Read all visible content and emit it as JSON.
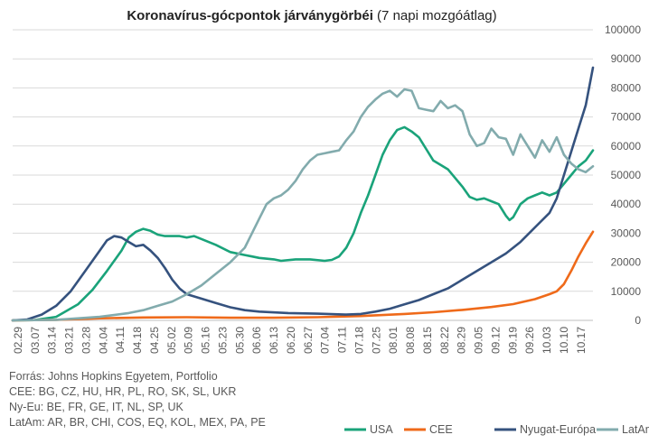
{
  "chart_data": {
    "type": "line",
    "title_bold": "Koronavírus-gócpontok járványgörbéi",
    "title_rest": " (7 napi mozgóátlag)",
    "x_labels": [
      "02.29",
      "03.07",
      "03.14",
      "03.21",
      "03.28",
      "04.04",
      "04.11",
      "04.18",
      "04.25",
      "05.02",
      "05.09",
      "05.16",
      "05.23",
      "05.30",
      "06.06",
      "06.13",
      "06.20",
      "06.27",
      "07.04",
      "07.11",
      "07.18",
      "07.25",
      "08.01",
      "08.08",
      "08.15",
      "08.22",
      "08.29",
      "09.05",
      "09.12",
      "09.19",
      "09.26",
      "10.03",
      "10.10",
      "10.17"
    ],
    "y_ticks": [
      "0",
      "10000",
      "20000",
      "30000",
      "40000",
      "50000",
      "60000",
      "70000",
      "80000",
      "90000",
      "100000"
    ],
    "ylim": [
      0,
      100000
    ],
    "y_axis_position": "right",
    "grid": true,
    "legend_position": "bottom-right",
    "series": [
      {
        "name": "USA",
        "color": "#1aa37a",
        "points": [
          [
            0,
            0
          ],
          [
            3,
            100
          ],
          [
            6,
            1200
          ],
          [
            9,
            5500
          ],
          [
            11,
            10500
          ],
          [
            13,
            17000
          ],
          [
            15,
            24000
          ],
          [
            16,
            28500
          ],
          [
            17,
            30500
          ],
          [
            18,
            31500
          ],
          [
            19,
            30800
          ],
          [
            20,
            29500
          ],
          [
            21,
            29000
          ],
          [
            23,
            29000
          ],
          [
            24,
            28500
          ],
          [
            25,
            29000
          ],
          [
            26,
            28000
          ],
          [
            28,
            26000
          ],
          [
            30,
            23500
          ],
          [
            32,
            22500
          ],
          [
            33,
            22000
          ],
          [
            34,
            21500
          ],
          [
            36,
            21000
          ],
          [
            37,
            20500
          ],
          [
            39,
            21000
          ],
          [
            41,
            21000
          ],
          [
            43,
            20500
          ],
          [
            44,
            20800
          ],
          [
            45,
            22000
          ],
          [
            46,
            25000
          ],
          [
            47,
            30000
          ],
          [
            48,
            37000
          ],
          [
            49,
            43000
          ],
          [
            50,
            50000
          ],
          [
            51,
            57000
          ],
          [
            52,
            62000
          ],
          [
            53,
            65500
          ],
          [
            54,
            66500
          ],
          [
            55,
            65000
          ],
          [
            56,
            63000
          ],
          [
            57,
            59000
          ],
          [
            58,
            55000
          ],
          [
            59,
            53500
          ],
          [
            60,
            52000
          ],
          [
            61,
            49000
          ],
          [
            62,
            46000
          ],
          [
            63,
            42500
          ],
          [
            64,
            41500
          ],
          [
            65,
            42000
          ],
          [
            66,
            41000
          ],
          [
            67,
            40000
          ],
          [
            68,
            36000
          ],
          [
            68.5,
            34500
          ],
          [
            69,
            35500
          ],
          [
            70,
            40000
          ],
          [
            71,
            42000
          ],
          [
            72,
            43000
          ],
          [
            73,
            44000
          ],
          [
            74,
            43000
          ],
          [
            75,
            44000
          ],
          [
            76,
            47000
          ],
          [
            77,
            50000
          ],
          [
            78,
            53000
          ],
          [
            79,
            55000
          ],
          [
            80,
            58500
          ]
        ]
      },
      {
        "name": "CEE",
        "color": "#ef6a1a",
        "points": [
          [
            0,
            0
          ],
          [
            6,
            200
          ],
          [
            12,
            700
          ],
          [
            18,
            1000
          ],
          [
            24,
            1100
          ],
          [
            30,
            900
          ],
          [
            36,
            900
          ],
          [
            42,
            1100
          ],
          [
            48,
            1500
          ],
          [
            54,
            2200
          ],
          [
            58,
            2800
          ],
          [
            62,
            3600
          ],
          [
            66,
            4600
          ],
          [
            69,
            5600
          ],
          [
            72,
            7300
          ],
          [
            74,
            9000
          ],
          [
            75,
            10000
          ],
          [
            76,
            12500
          ],
          [
            77,
            17000
          ],
          [
            78,
            22000
          ],
          [
            79,
            26500
          ],
          [
            80,
            30500
          ]
        ]
      },
      {
        "name": "Nyugat-Európa",
        "color": "#35527e",
        "points": [
          [
            0,
            0
          ],
          [
            2,
            300
          ],
          [
            4,
            2000
          ],
          [
            6,
            5000
          ],
          [
            8,
            10000
          ],
          [
            10,
            17000
          ],
          [
            12,
            24000
          ],
          [
            13,
            27500
          ],
          [
            14,
            29000
          ],
          [
            15,
            28500
          ],
          [
            16,
            27000
          ],
          [
            17,
            25500
          ],
          [
            18,
            26000
          ],
          [
            19,
            24000
          ],
          [
            20,
            21500
          ],
          [
            21,
            18000
          ],
          [
            22,
            14000
          ],
          [
            23,
            11000
          ],
          [
            24,
            9000
          ],
          [
            26,
            7500
          ],
          [
            28,
            6000
          ],
          [
            30,
            4500
          ],
          [
            32,
            3500
          ],
          [
            34,
            3000
          ],
          [
            38,
            2500
          ],
          [
            42,
            2300
          ],
          [
            46,
            2000
          ],
          [
            48,
            2200
          ],
          [
            50,
            3000
          ],
          [
            52,
            4000
          ],
          [
            54,
            5500
          ],
          [
            56,
            7000
          ],
          [
            58,
            9000
          ],
          [
            60,
            11000
          ],
          [
            62,
            14000
          ],
          [
            64,
            17000
          ],
          [
            66,
            20000
          ],
          [
            68,
            23000
          ],
          [
            70,
            27000
          ],
          [
            72,
            32000
          ],
          [
            74,
            37000
          ],
          [
            75,
            42000
          ],
          [
            76,
            50000
          ],
          [
            77,
            58000
          ],
          [
            78,
            66000
          ],
          [
            79,
            74000
          ],
          [
            80,
            87000
          ]
        ]
      },
      {
        "name": "LatAm",
        "color": "#82abad",
        "points": [
          [
            0,
            0
          ],
          [
            6,
            200
          ],
          [
            12,
            1200
          ],
          [
            16,
            2500
          ],
          [
            18,
            3500
          ],
          [
            20,
            5000
          ],
          [
            22,
            6500
          ],
          [
            24,
            9000
          ],
          [
            26,
            12000
          ],
          [
            28,
            16000
          ],
          [
            30,
            20000
          ],
          [
            32,
            25000
          ],
          [
            33,
            30000
          ],
          [
            34,
            35000
          ],
          [
            35,
            40000
          ],
          [
            36,
            42000
          ],
          [
            37,
            43000
          ],
          [
            38,
            45000
          ],
          [
            39,
            48000
          ],
          [
            40,
            52000
          ],
          [
            41,
            55000
          ],
          [
            42,
            57000
          ],
          [
            43,
            57500
          ],
          [
            44,
            58000
          ],
          [
            45,
            58500
          ],
          [
            46,
            62000
          ],
          [
            47,
            65000
          ],
          [
            48,
            70000
          ],
          [
            49,
            73500
          ],
          [
            50,
            76000
          ],
          [
            51,
            78000
          ],
          [
            52,
            79000
          ],
          [
            53,
            77000
          ],
          [
            54,
            79500
          ],
          [
            55,
            79000
          ],
          [
            56,
            73000
          ],
          [
            57,
            72500
          ],
          [
            58,
            72000
          ],
          [
            59,
            75500
          ],
          [
            60,
            73000
          ],
          [
            61,
            74000
          ],
          [
            62,
            72000
          ],
          [
            63,
            64000
          ],
          [
            64,
            60000
          ],
          [
            65,
            61000
          ],
          [
            66,
            66000
          ],
          [
            67,
            63000
          ],
          [
            68,
            62500
          ],
          [
            69,
            57000
          ],
          [
            70,
            64000
          ],
          [
            71,
            60000
          ],
          [
            72,
            56000
          ],
          [
            73,
            62000
          ],
          [
            74,
            58000
          ],
          [
            75,
            63000
          ],
          [
            76,
            57000
          ],
          [
            77,
            54000
          ],
          [
            78,
            52000
          ],
          [
            79,
            51000
          ],
          [
            80,
            53000
          ]
        ]
      }
    ],
    "x_max_index": 80
  },
  "source_lines": [
    "Forrás: Johns Hopkins Egyetem, Portfolio",
    "CEE: BG, CZ, HU, HR, PL, RO, SK, SL, UKR",
    "Ny-Eu: BE, FR, GE, IT, NL, SP, UK",
    "LatAm: AR, BR, CHI, COS, EQ, KOL, MEX, PA, PE"
  ]
}
